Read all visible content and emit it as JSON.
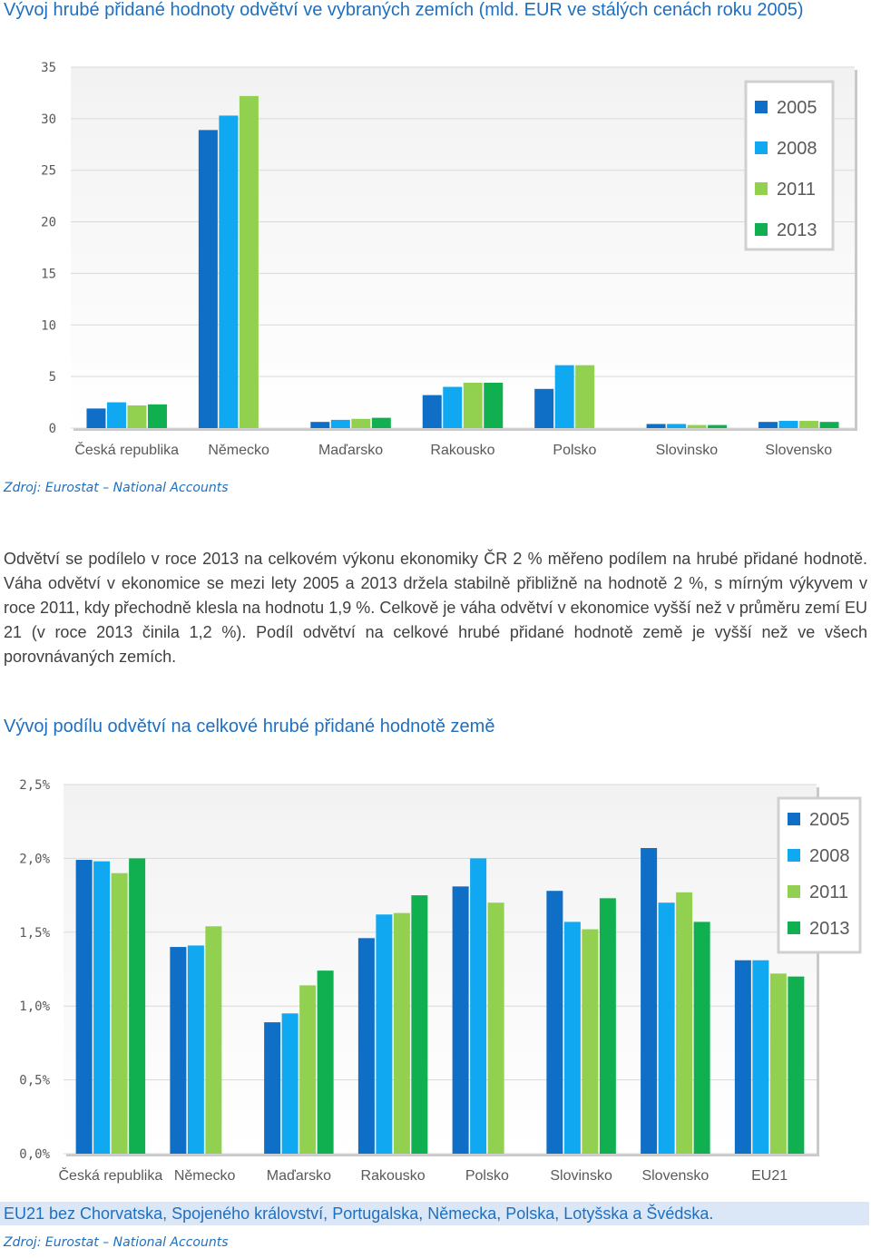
{
  "chart1_title": "Vývoj hrubé přidané hodnoty odvětví ve vybraných zemích (mld. EUR ve stálých cenách roku 2005)",
  "source1": "Zdroj: Eurostat – National Accounts",
  "paragraph": "Odvětví se podílelo v roce 2013 na celkovém výkonu ekonomiky ČR 2 % měřeno podílem na hrubé přidané hodnotě. Váha odvětví v ekonomice se mezi lety 2005 a 2013 držela stabilně přibližně na hodnotě 2 %, s mírným výkyvem v roce 2011, kdy přechodně klesla na hodnotu 1,9 %. Celkově je váha odvětví v ekonomice vyšší než v průměru zemí EU 21 (v roce 2013 činila 1,2 %). Podíl odvětví na celkové hrubé přidané hodnotě země je vyšší než ve všech porovnávaných zemích.",
  "chart2_title": "Vývoj podílu odvětví na celkové hrubé přidané hodnotě země",
  "note": "EU21 bez Chorvatska, Spojeného království, Portugalska, Německa, Polska, Lotyšska a Švédska.",
  "source2": "Zdroj: Eurostat – National Accounts",
  "colors": {
    "2005": "#0f6fc6",
    "2008": "#10a8f0",
    "2011": "#92d050",
    "2013": "#10b050"
  },
  "chart_data": [
    {
      "type": "bar",
      "title": "Vývoj hrubé přidané hodnoty odvětví ve vybraných zemích (mld. EUR ve stálých cenách roku 2005)",
      "categories": [
        "Česká republika",
        "Německo",
        "Maďarsko",
        "Rakousko",
        "Polsko",
        "Slovinsko",
        "Slovensko"
      ],
      "series": [
        {
          "name": "2005",
          "values": [
            1.9,
            28.9,
            0.6,
            3.2,
            3.8,
            0.4,
            0.6
          ]
        },
        {
          "name": "2008",
          "values": [
            2.5,
            30.3,
            0.8,
            4.0,
            6.1,
            0.4,
            0.7
          ]
        },
        {
          "name": "2011",
          "values": [
            2.2,
            32.2,
            0.9,
            4.4,
            6.1,
            0.3,
            0.7
          ]
        },
        {
          "name": "2013",
          "values": [
            2.3,
            null,
            1.0,
            4.4,
            null,
            0.3,
            0.6
          ]
        }
      ],
      "ylim": [
        0,
        35
      ],
      "yticks": [
        0,
        5,
        10,
        15,
        20,
        25,
        30,
        35
      ],
      "ytick_labels": [
        "0",
        "5",
        "10",
        "15",
        "20",
        "25",
        "30",
        "35"
      ],
      "xlabel": "",
      "ylabel": "",
      "legend": "top-right"
    },
    {
      "type": "bar",
      "title": "Vývoj podílu odvětví na celkové hrubé přidané hodnotě země",
      "categories": [
        "Česká republika",
        "Německo",
        "Maďarsko",
        "Rakousko",
        "Polsko",
        "Slovinsko",
        "Slovensko",
        "EU21"
      ],
      "series": [
        {
          "name": "2005",
          "values": [
            1.99,
            1.4,
            0.89,
            1.46,
            1.81,
            1.78,
            2.07,
            1.31
          ]
        },
        {
          "name": "2008",
          "values": [
            1.98,
            1.41,
            0.95,
            1.62,
            2.0,
            1.57,
            1.7,
            1.31
          ]
        },
        {
          "name": "2011",
          "values": [
            1.9,
            1.54,
            1.14,
            1.63,
            1.7,
            1.52,
            1.77,
            1.22
          ]
        },
        {
          "name": "2013",
          "values": [
            2.0,
            null,
            1.24,
            1.75,
            null,
            1.73,
            1.57,
            1.2
          ]
        }
      ],
      "ylim": [
        0,
        2.5
      ],
      "yticks": [
        0,
        0.5,
        1.0,
        1.5,
        2.0,
        2.5
      ],
      "ytick_labels": [
        "0,0%",
        "0,5%",
        "1,0%",
        "1,5%",
        "2,0%",
        "2,5%"
      ],
      "xlabel": "",
      "ylabel": "",
      "legend": "top-right"
    }
  ]
}
